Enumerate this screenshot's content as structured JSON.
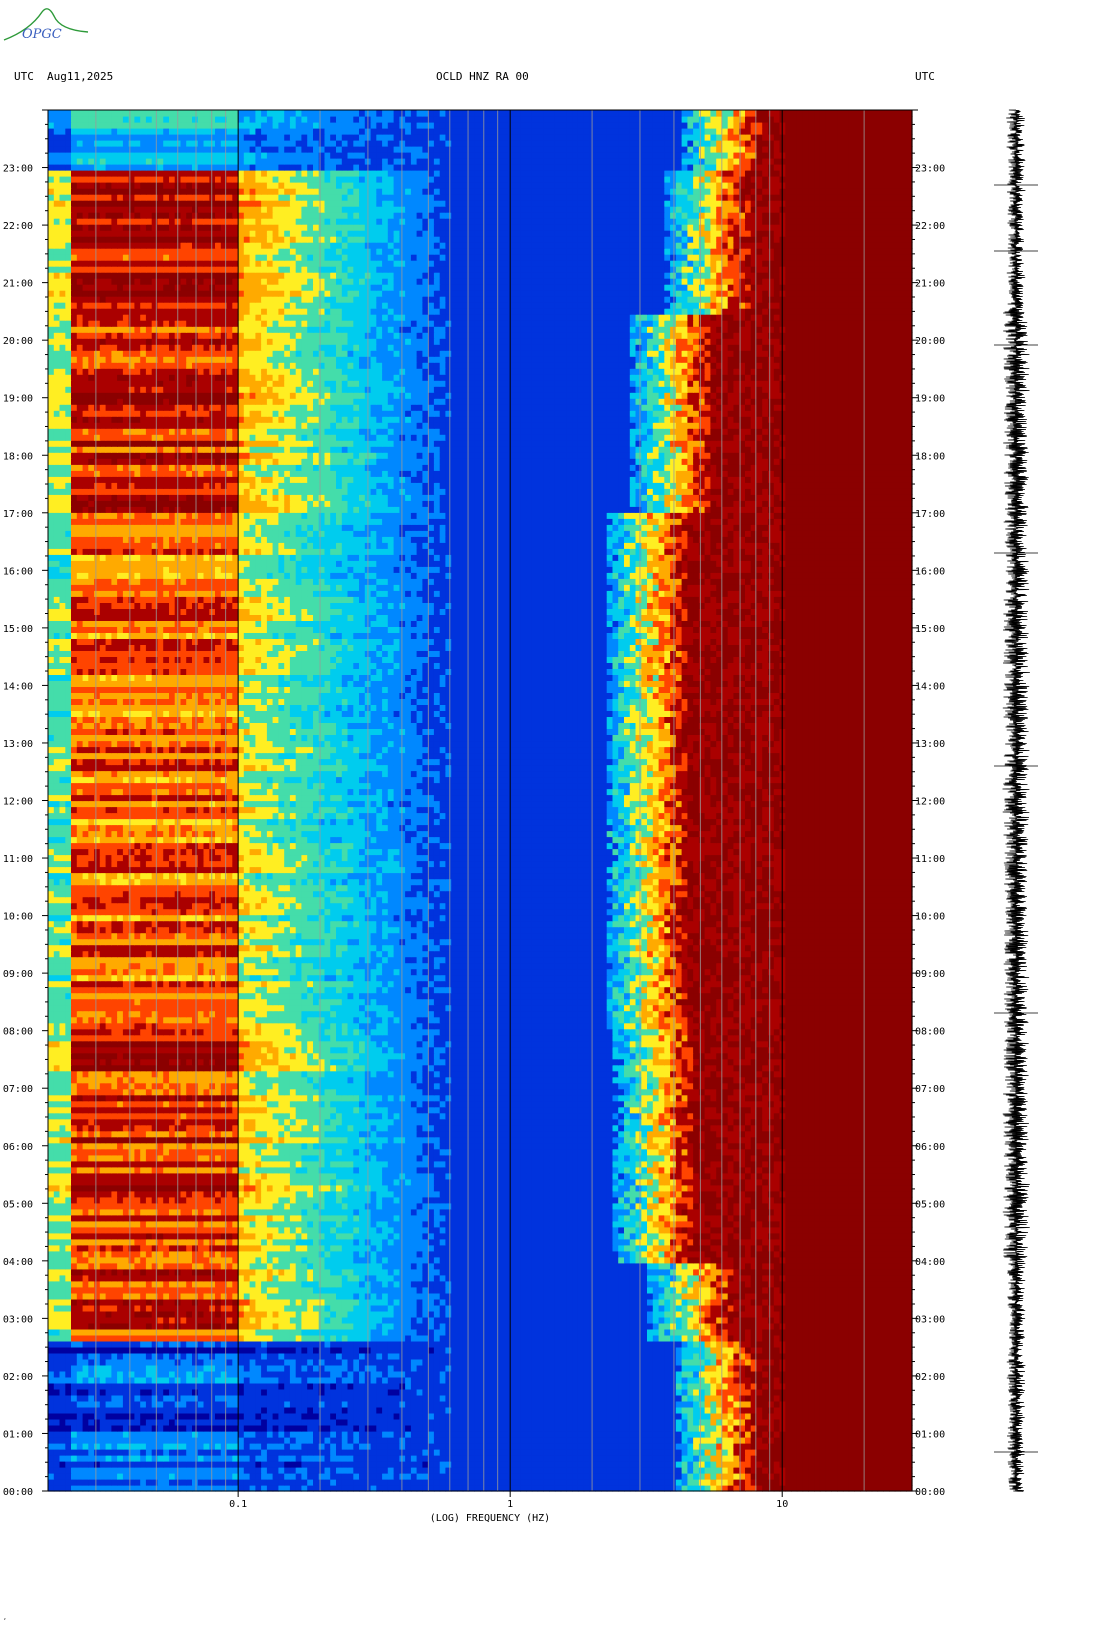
{
  "header": {
    "left_tz": "UTC",
    "date": "Aug11,2025",
    "station": "OCLD HNZ RA 00",
    "right_tz": "UTC"
  },
  "logo": {
    "text": "OPGC"
  },
  "chart_data": {
    "type": "heatmap",
    "title": "OCLD HNZ RA 00",
    "xlabel": "(LOG) FREQUENCY (HZ)",
    "ylabel": "",
    "xscale": "log",
    "xlim": [
      0.02,
      30
    ],
    "x_ticks": [
      {
        "value": 0.1,
        "label": "0.1"
      },
      {
        "value": 1,
        "label": "1"
      },
      {
        "value": 10,
        "label": "10"
      }
    ],
    "x_minor_ticks": [
      0.03,
      0.04,
      0.05,
      0.06,
      0.07,
      0.08,
      0.09,
      0.2,
      0.3,
      0.4,
      0.5,
      0.6,
      0.7,
      0.8,
      0.9,
      2,
      3,
      4,
      5,
      6,
      7,
      8,
      9,
      20
    ],
    "ylim": [
      "00:00",
      "24:00"
    ],
    "y_ticks": [
      "00:00",
      "01:00",
      "02:00",
      "03:00",
      "04:00",
      "05:00",
      "06:00",
      "07:00",
      "08:00",
      "09:00",
      "10:00",
      "11:00",
      "12:00",
      "13:00",
      "14:00",
      "15:00",
      "16:00",
      "17:00",
      "18:00",
      "19:00",
      "20:00",
      "21:00",
      "22:00",
      "23:00"
    ],
    "colormap": [
      "#0000a0",
      "#0033dd",
      "#0088ff",
      "#00ccee",
      "#44ddaa",
      "#ffee22",
      "#ffaa00",
      "#ff4400",
      "#aa0000",
      "#8b0000"
    ],
    "intensity_profile": [
      {
        "hours": [
          0,
          2.65
        ],
        "lowfreq": 0.15,
        "microseism": 0.22,
        "cultural_edge_hz": 8.0
      },
      {
        "hours": [
          2.65,
          4.0
        ],
        "lowfreq": 0.8,
        "microseism": 0.3,
        "cultural_edge_hz": 6.5
      },
      {
        "hours": [
          4.0,
          8.0
        ],
        "lowfreq": 0.85,
        "microseism": 0.35,
        "cultural_edge_hz": 4.8
      },
      {
        "hours": [
          8.0,
          17.0
        ],
        "lowfreq": 0.75,
        "microseism": 0.3,
        "cultural_edge_hz": 4.5
      },
      {
        "hours": [
          17.0,
          20.5
        ],
        "lowfreq": 0.85,
        "microseism": 0.3,
        "cultural_edge_hz": 5.5
      },
      {
        "hours": [
          20.5,
          23.0
        ],
        "lowfreq": 0.9,
        "microseism": 0.28,
        "cultural_edge_hz": 7.5
      },
      {
        "hours": [
          23.0,
          24.0
        ],
        "lowfreq": 0.3,
        "microseism": 0.22,
        "cultural_edge_hz": 8.5
      }
    ],
    "saturated_band_hz": [
      10.5,
      30
    ]
  },
  "footer": {
    "mark": "‘"
  }
}
